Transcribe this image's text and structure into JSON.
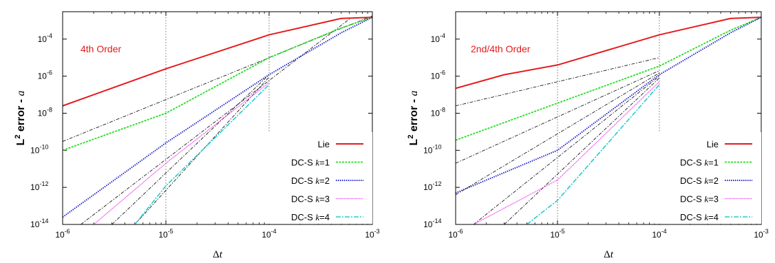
{
  "chart_data": [
    {
      "type": "line",
      "title": "",
      "xlabel": "Δt",
      "ylabel": "L² error - a",
      "x_scale": "log",
      "y_scale": "log",
      "xlim": [
        1e-06,
        0.001
      ],
      "ylim": [
        1e-14,
        0.003
      ],
      "grid": "major x-gridlines at 1e-05 and 1e-04",
      "legend_position": "bottom-right",
      "annotation": "4th Order",
      "annotation_color": "#e41a1c",
      "x_ticks": [
        {
          "value": 1e-06,
          "base": "10",
          "exp": "-6"
        },
        {
          "value": 1e-05,
          "base": "10",
          "exp": "-5"
        },
        {
          "value": 0.0001,
          "base": "10",
          "exp": "-4"
        },
        {
          "value": 0.001,
          "base": "10",
          "exp": "-3"
        }
      ],
      "y_ticks": [
        {
          "value": 1e-14,
          "base": "10",
          "exp": "-14"
        },
        {
          "value": 1e-12,
          "base": "10",
          "exp": "-12"
        },
        {
          "value": 1e-10,
          "base": "10",
          "exp": "-10"
        },
        {
          "value": 1e-08,
          "base": "10",
          "exp": "-8"
        },
        {
          "value": 1e-06,
          "base": "10",
          "exp": "-6"
        },
        {
          "value": 0.0001,
          "base": "10",
          "exp": "-4"
        }
      ],
      "series": [
        {
          "name": "Lie",
          "name_prefix": "Lie",
          "name_k": "",
          "color": "#e41a1c",
          "style": "solid",
          "x": [
            1e-06,
            1e-05,
            0.0001,
            0.0005,
            0.001
          ],
          "y": [
            2.5e-08,
            2.5e-06,
            0.00017,
            0.0013,
            0.0015
          ]
        },
        {
          "name": "DC-S k=1",
          "name_prefix": "DC-S ",
          "name_k": "k=1",
          "color": "#22dd22",
          "style": "dashed",
          "x": [
            1e-06,
            1e-05,
            0.0001,
            0.0005,
            0.001
          ],
          "y": [
            1e-10,
            1e-08,
            1e-05,
            0.0004,
            0.0015
          ]
        },
        {
          "name": "DC-S k=2",
          "name_prefix": "DC-S ",
          "name_k": "k=2",
          "color": "#2222cc",
          "style": "dotted",
          "x": [
            1e-06,
            1e-05,
            0.0001,
            0.0005,
            0.001
          ],
          "y": [
            2.5e-14,
            2.5e-10,
            1.2e-06,
            0.00022,
            0.0015
          ]
        },
        {
          "name": "DC-S k=3",
          "name_prefix": "DC-S ",
          "name_k": "k=3",
          "color": "#ee22ee",
          "style": "dotted-fine",
          "x": [
            2e-06,
            1e-05,
            0.0001
          ],
          "y": [
            1e-14,
            2e-11,
            4.5e-07
          ]
        },
        {
          "name": "DC-S k=4",
          "name_prefix": "DC-S ",
          "name_k": "k=4",
          "color": "#22cccc",
          "style": "dashdot",
          "x": [
            5e-06,
            1e-05,
            0.0001
          ],
          "y": [
            1e-14,
            1.2e-12,
            3.5e-07
          ]
        }
      ],
      "reference_lines": [
        {
          "x": [
            1e-06,
            0.001
          ],
          "y": [
            3e-10,
            0.0018
          ]
        },
        {
          "x": [
            1.5e-06,
            0.0006
          ],
          "y": [
            1e-14,
            0.0012
          ]
        },
        {
          "x": [
            3e-06,
            0.0001
          ],
          "y": [
            1e-14,
            1.2e-06
          ]
        },
        {
          "x": [
            5e-06,
            0.0001
          ],
          "y": [
            1e-14,
            9e-07
          ]
        }
      ]
    },
    {
      "type": "line",
      "title": "",
      "xlabel": "Δt",
      "ylabel": "L² error - a",
      "x_scale": "log",
      "y_scale": "log",
      "xlim": [
        1e-06,
        0.001
      ],
      "ylim": [
        1e-14,
        0.003
      ],
      "grid": "major x-gridlines at 1e-05 and 1e-04",
      "legend_position": "bottom-right",
      "annotation": "2nd/4th Order",
      "annotation_color": "#e41a1c",
      "x_ticks": [
        {
          "value": 1e-06,
          "base": "10",
          "exp": "-6"
        },
        {
          "value": 1e-05,
          "base": "10",
          "exp": "-5"
        },
        {
          "value": 0.0001,
          "base": "10",
          "exp": "-4"
        },
        {
          "value": 0.001,
          "base": "10",
          "exp": "-3"
        }
      ],
      "y_ticks": [
        {
          "value": 1e-14,
          "base": "10",
          "exp": "-14"
        },
        {
          "value": 1e-12,
          "base": "10",
          "exp": "-12"
        },
        {
          "value": 1e-10,
          "base": "10",
          "exp": "-10"
        },
        {
          "value": 1e-08,
          "base": "10",
          "exp": "-8"
        },
        {
          "value": 1e-06,
          "base": "10",
          "exp": "-6"
        },
        {
          "value": 0.0001,
          "base": "10",
          "exp": "-4"
        }
      ],
      "series": [
        {
          "name": "Lie",
          "name_prefix": "Lie",
          "name_k": "",
          "color": "#e41a1c",
          "style": "solid",
          "x": [
            1e-06,
            3e-06,
            1e-05,
            0.0001,
            0.0005,
            0.001
          ],
          "y": [
            2.2e-07,
            1.2e-06,
            4e-06,
            0.00017,
            0.0013,
            0.0015
          ]
        },
        {
          "name": "DC-S k=1",
          "name_prefix": "DC-S ",
          "name_k": "k=1",
          "color": "#22dd22",
          "style": "dashed",
          "x": [
            1e-06,
            1e-05,
            0.0001,
            0.0005,
            0.001
          ],
          "y": [
            3.5e-10,
            3.5e-08,
            3.5e-06,
            0.0003,
            0.0015
          ]
        },
        {
          "name": "DC-S k=2",
          "name_prefix": "DC-S ",
          "name_k": "k=2",
          "color": "#2222cc",
          "style": "dotted",
          "x": [
            1e-06,
            1e-05,
            0.0001,
            0.0005,
            0.001
          ],
          "y": [
            5e-13,
            1e-10,
            1.2e-06,
            0.00022,
            0.0015
          ]
        },
        {
          "name": "DC-S k=3",
          "name_prefix": "DC-S ",
          "name_k": "k=3",
          "color": "#ee22ee",
          "style": "dotted-fine",
          "x": [
            1.5e-06,
            1e-05,
            0.0001
          ],
          "y": [
            1e-14,
            2.5e-12,
            5e-07
          ]
        },
        {
          "name": "DC-S k=4",
          "name_prefix": "DC-S ",
          "name_k": "k=4",
          "color": "#22cccc",
          "style": "dashdot",
          "x": [
            5e-06,
            1e-05,
            0.0001
          ],
          "y": [
            1e-14,
            2e-13,
            3.5e-07
          ]
        }
      ],
      "reference_lines": [
        {
          "x": [
            1e-06,
            0.0001
          ],
          "y": [
            2.5e-08,
            1e-05
          ]
        },
        {
          "x": [
            1e-06,
            0.0001
          ],
          "y": [
            2e-11,
            2e-06
          ]
        },
        {
          "x": [
            1e-06,
            0.0001
          ],
          "y": [
            4e-13,
            1.5e-06
          ]
        },
        {
          "x": [
            1.5e-06,
            0.0001
          ],
          "y": [
            1e-14,
            1e-06
          ]
        },
        {
          "x": [
            3e-06,
            0.0001
          ],
          "y": [
            1e-14,
            8e-07
          ]
        }
      ]
    }
  ]
}
